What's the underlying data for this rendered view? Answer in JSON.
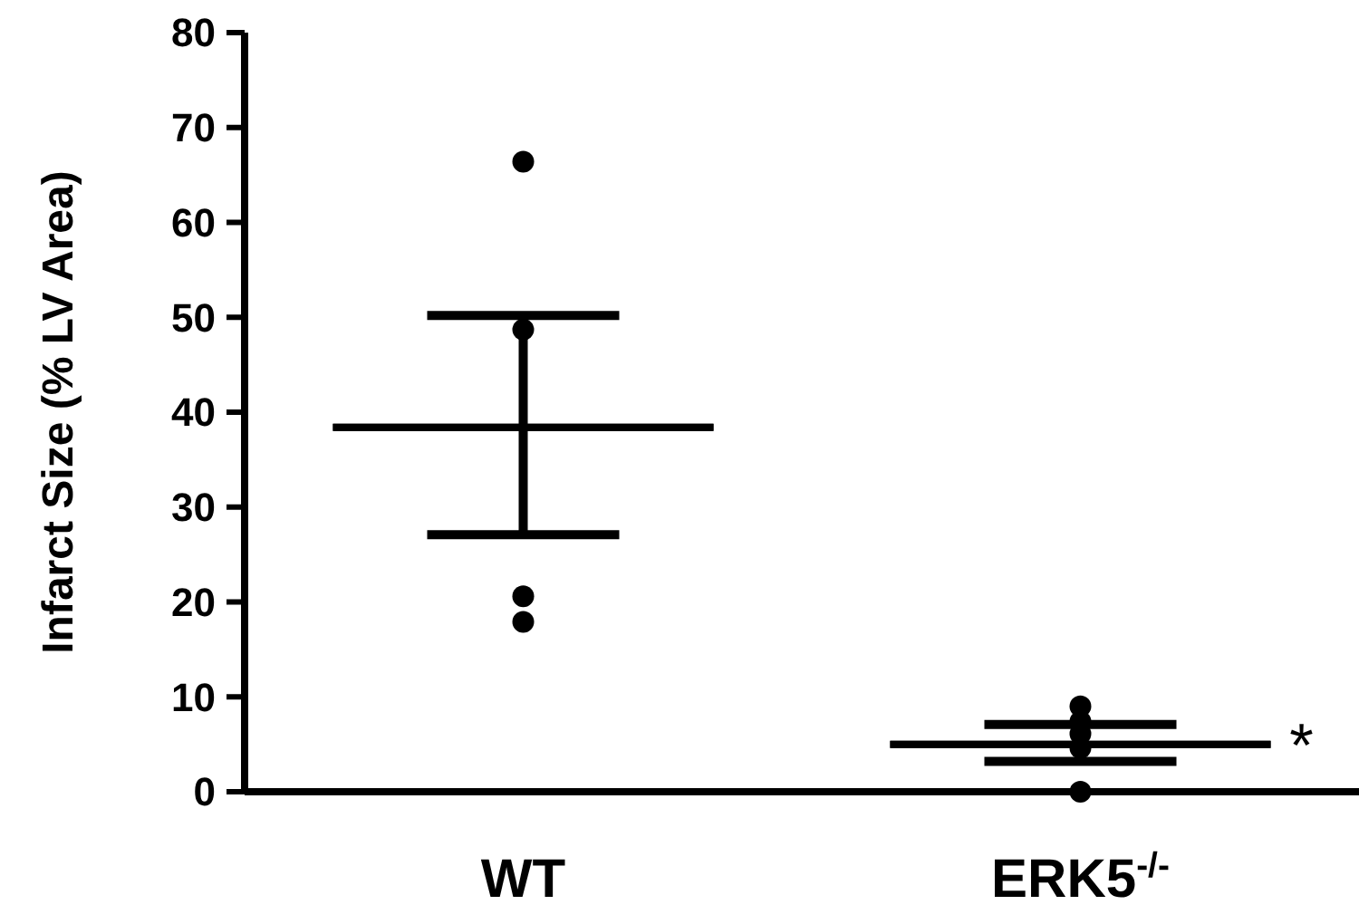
{
  "chart_data": {
    "type": "box",
    "ylabel": "Infarct Size (% LV Area)",
    "categories": [
      "WT",
      "ERK5$^{-/-}$"
    ],
    "ylim": [
      0,
      80
    ],
    "yticks": [
      0,
      10,
      20,
      30,
      40,
      50,
      60,
      70,
      80
    ],
    "grid": false,
    "color": "#000000",
    "boxes": [
      {
        "low": 27.1,
        "q1": 38.4,
        "median": 38.4,
        "q3": 38.4,
        "high": 50.2
      },
      {
        "low": 3.2,
        "q1": 5.0,
        "median": 5.0,
        "q3": 5.0,
        "high": 7.1
      }
    ],
    "series": [
      {
        "type": "scatter",
        "marker": "circle",
        "color": "#000000",
        "x": [
          "WT",
          "WT",
          "WT",
          "WT",
          "ERK5$^{-/-}$",
          "ERK5$^{-/-}$",
          "ERK5$^{-/-}$",
          "ERK5$^{-/-}$",
          "ERK5$^{-/-}$"
        ],
        "values": [
          66.4,
          48.7,
          20.6,
          17.9,
          9.0,
          7.4,
          6.1,
          4.6,
          0
        ]
      }
    ],
    "annotations": [
      "*"
    ]
  }
}
